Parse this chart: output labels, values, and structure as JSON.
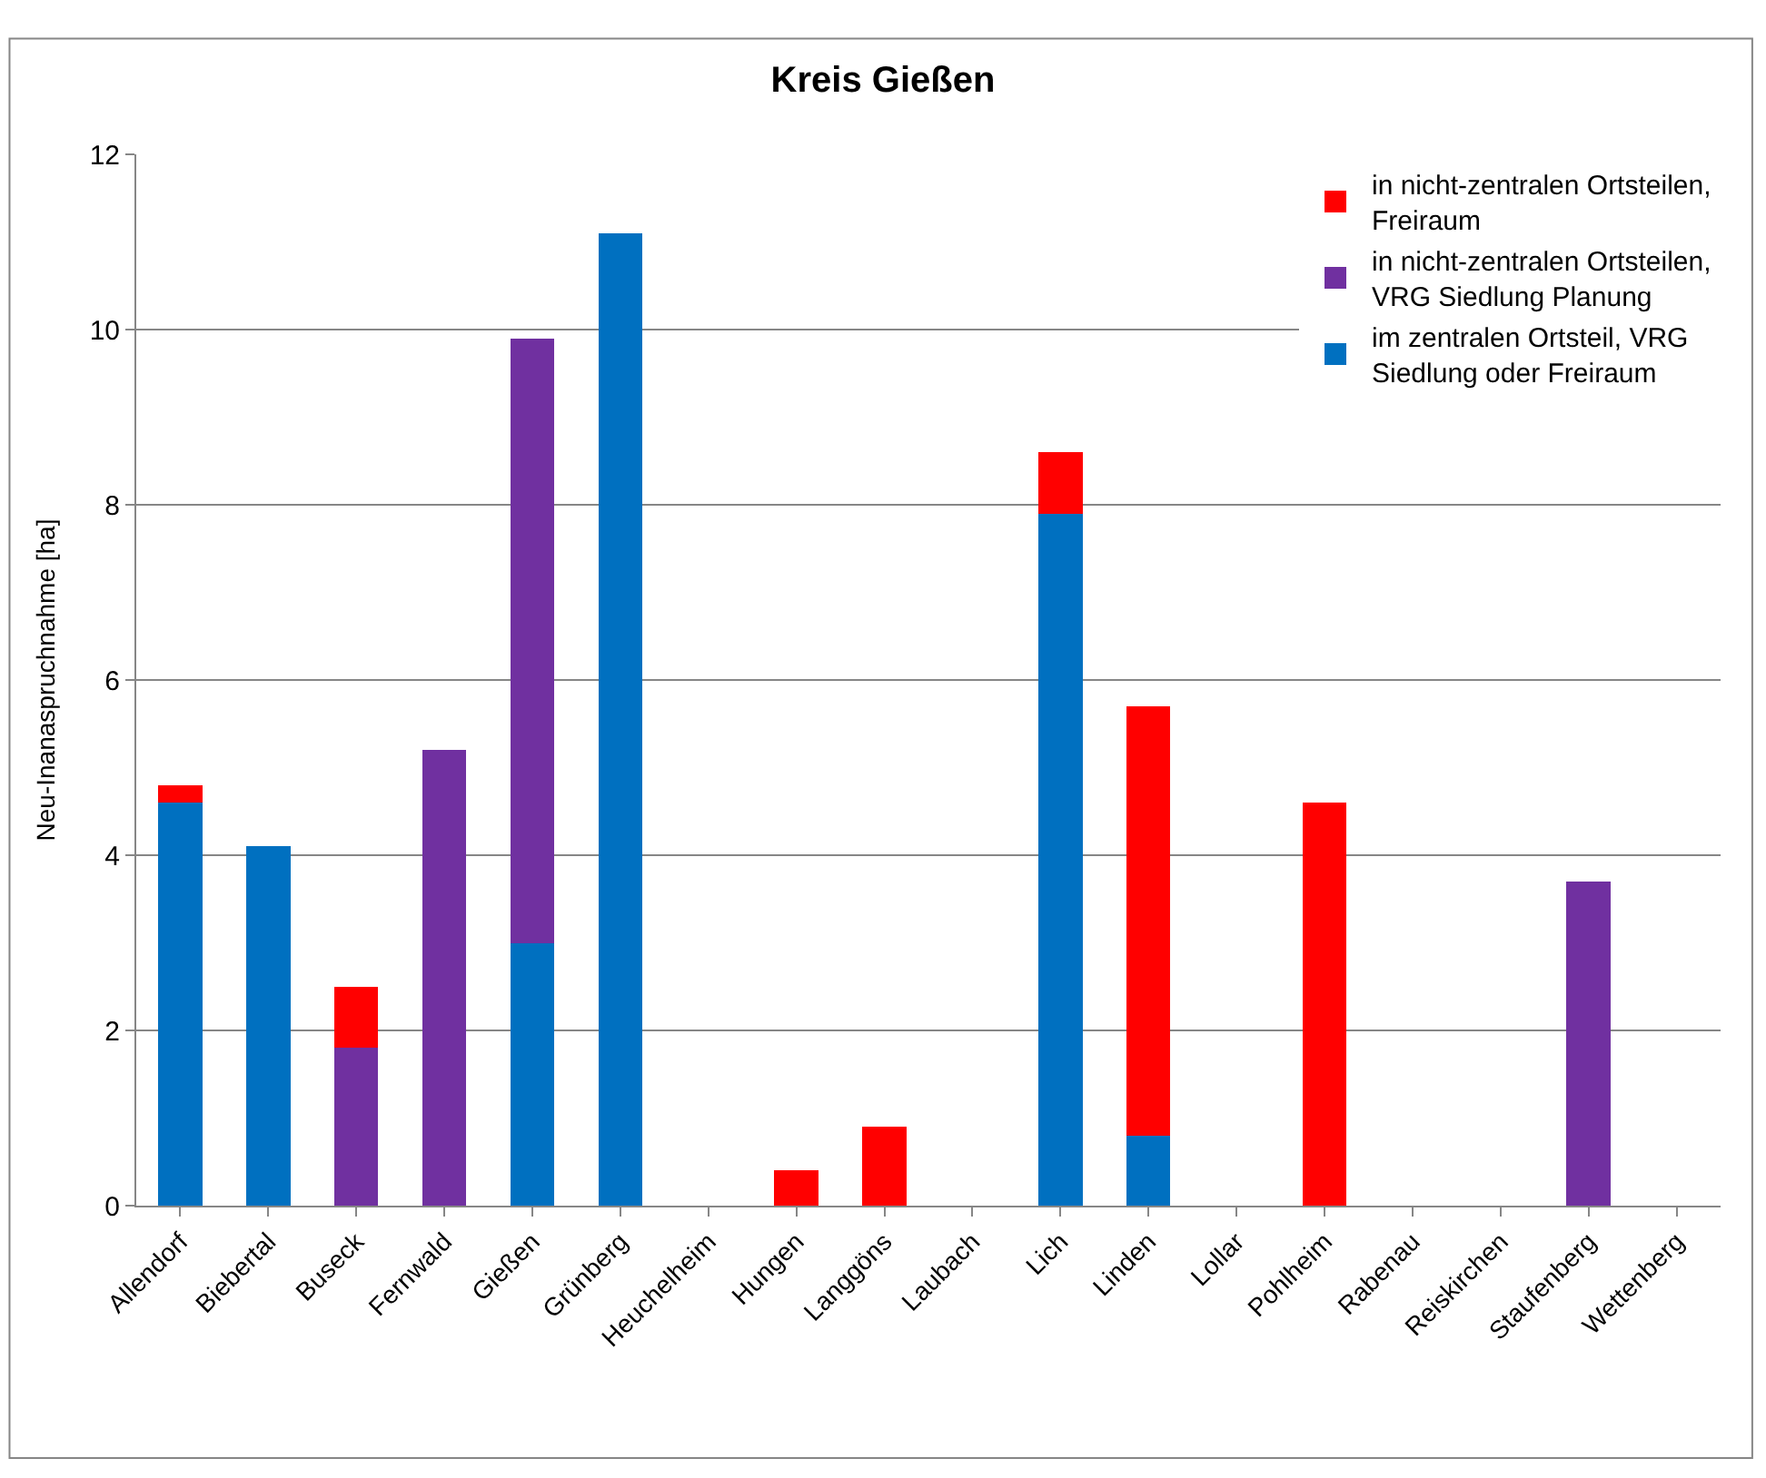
{
  "chart_data": {
    "type": "bar",
    "title": "Kreis Gießen",
    "ylabel": "Neu-Inanaspruchnahme [ha]",
    "stacked": true,
    "categories": [
      "Allendorf",
      "Biebertal",
      "Buseck",
      "Fernwald",
      "Gießen",
      "Grünberg",
      "Heuchelheim",
      "Hungen",
      "Langgöns",
      "Laubach",
      "Lich",
      "Linden",
      "Lollar",
      "Pohlheim",
      "Rabenau",
      "Reiskirchen",
      "Staufenberg",
      "Wettenberg"
    ],
    "series": [
      {
        "name": "im zentralen Ortsteil, VRG Siedlung oder Freiraum",
        "color": "#0070c0",
        "values": [
          4.6,
          4.1,
          0,
          0,
          3.0,
          11.1,
          0,
          0,
          0,
          0,
          7.9,
          0.8,
          0,
          0,
          0,
          0,
          0,
          0
        ]
      },
      {
        "name": "in nicht-zentralen Ortsteilen, VRG Siedlung Planung",
        "color": "#7030a0",
        "values": [
          0,
          0,
          1.8,
          5.2,
          6.9,
          0,
          0,
          0,
          0,
          0,
          0,
          0,
          0,
          0,
          0,
          0,
          3.7,
          0
        ]
      },
      {
        "name": "in nicht-zentralen Ortsteilen, Freiraum",
        "color": "#ff0000",
        "values": [
          0.2,
          0,
          0.7,
          0,
          0,
          0,
          0,
          0.4,
          0.9,
          0,
          0.7,
          4.9,
          0,
          4.6,
          0,
          0,
          0,
          0
        ]
      }
    ],
    "ylim": [
      0,
      12
    ],
    "yticks": [
      0,
      2,
      4,
      6,
      8,
      10,
      12
    ],
    "grid": "y",
    "legend": "top right"
  }
}
